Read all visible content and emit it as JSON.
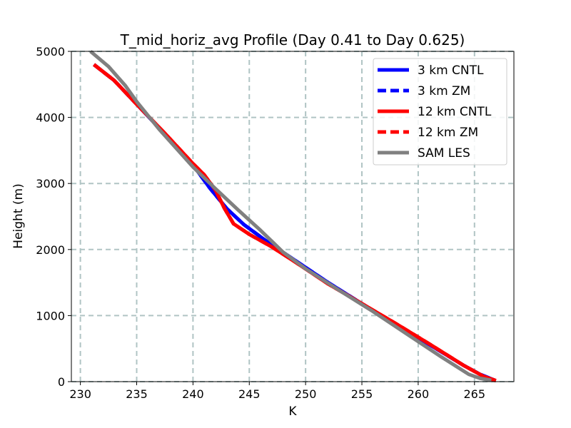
{
  "chart_data": {
    "type": "line",
    "title": "T_mid_horiz_avg Profile (Day 0.41 to Day 0.625)",
    "xlabel": "K",
    "ylabel": "Height (m)",
    "xlim": [
      229.2,
      268.5
    ],
    "ylim": [
      0,
      5000
    ],
    "xticks": [
      230,
      235,
      240,
      245,
      250,
      255,
      260,
      265
    ],
    "yticks": [
      0,
      1000,
      2000,
      3000,
      4000,
      5000
    ],
    "grid": true,
    "legend_position": "top-right",
    "series": [
      {
        "name": "3 km CNTL",
        "color": "#0000ff",
        "style": "solid",
        "x": [
          231.2,
          233.0,
          235.0,
          237.5,
          240.0,
          241.5,
          243.0,
          244.5,
          246.5,
          248.5,
          252.0,
          255.0,
          258.0,
          261.0,
          264.0,
          265.5,
          266.8
        ],
        "y": [
          4800,
          4560,
          4200,
          3750,
          3280,
          2930,
          2620,
          2380,
          2130,
          1900,
          1500,
          1180,
          870,
          560,
          250,
          110,
          20
        ]
      },
      {
        "name": "3 km ZM",
        "color": "#0000ff",
        "style": "dashed",
        "x": [
          231.2,
          233.0,
          235.0,
          237.5,
          240.0,
          241.5,
          243.0,
          244.5,
          246.5,
          248.5,
          252.0,
          255.0,
          258.0,
          261.0,
          264.0,
          265.5,
          266.8
        ],
        "y": [
          4800,
          4560,
          4200,
          3750,
          3280,
          2930,
          2620,
          2380,
          2130,
          1900,
          1500,
          1180,
          870,
          560,
          250,
          110,
          20
        ]
      },
      {
        "name": "12 km CNTL",
        "color": "#ff0000",
        "style": "solid",
        "x": [
          231.2,
          233.0,
          235.0,
          237.5,
          240.0,
          241.0,
          242.0,
          242.8,
          243.6,
          245.0,
          247.0,
          249.0,
          252.0,
          255.0,
          258.0,
          261.0,
          264.0,
          265.8,
          266.9
        ],
        "y": [
          4800,
          4560,
          4200,
          3760,
          3300,
          3130,
          2900,
          2620,
          2390,
          2230,
          2040,
          1820,
          1480,
          1180,
          880,
          570,
          250,
          80,
          15
        ]
      },
      {
        "name": "12 km ZM",
        "color": "#ff0000",
        "style": "dashed",
        "x": [
          231.2,
          233.0,
          235.0,
          237.5,
          240.0,
          241.0,
          242.0,
          242.8,
          243.6,
          245.0,
          247.0,
          249.0,
          252.0,
          255.0,
          258.0,
          261.0,
          264.0,
          265.8,
          266.9
        ],
        "y": [
          4800,
          4560,
          4200,
          3760,
          3300,
          3130,
          2900,
          2620,
          2390,
          2230,
          2040,
          1820,
          1480,
          1180,
          880,
          570,
          250,
          80,
          15
        ]
      },
      {
        "name": "SAM LES",
        "color": "#808080",
        "style": "solid",
        "x": [
          230.9,
          232.5,
          234.0,
          235.0,
          237.0,
          240.0,
          242.0,
          244.0,
          246.0,
          248.0,
          250.0,
          253.0,
          256.0,
          259.0,
          262.0,
          264.5,
          265.5,
          266.5
        ],
        "y": [
          5000,
          4770,
          4480,
          4240,
          3820,
          3250,
          2920,
          2600,
          2290,
          1960,
          1710,
          1380,
          1060,
          720,
          380,
          110,
          50,
          20
        ]
      }
    ]
  }
}
